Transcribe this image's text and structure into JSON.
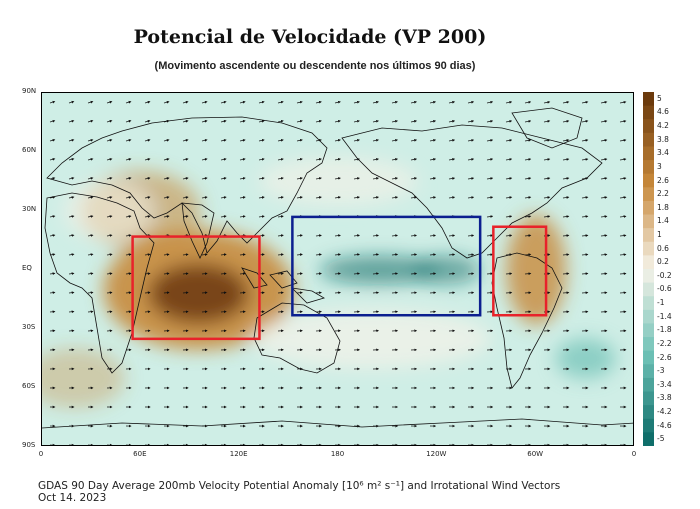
{
  "title": "Potencial de Velocidade (VP 200)",
  "subtitle": "(Movimento ascendente ou descendente nos últimos 90 dias)",
  "footer": {
    "line1": "GDAS 90 Day Average 200mb Velocity Potential Anomaly [10⁶ m² s⁻¹] and Irrotational Wind Vectors",
    "line2": "Oct 14. 2023"
  },
  "map": {
    "lat_labels": [
      "90N",
      "60N",
      "30N",
      "EQ",
      "30S",
      "60S",
      "90S"
    ],
    "lon_labels": [
      "0",
      "60E",
      "120E",
      "180",
      "120W",
      "60W",
      "0"
    ],
    "colors": {
      "positive_strong": "#6b3a0c",
      "positive": "#c8893b",
      "neutral": "#f5f2e8",
      "negative": "#6fc2b7",
      "negative_strong": "#0f6e6a",
      "box_red": "#e8222a",
      "box_blue": "#0b1f8f"
    },
    "boxes": [
      {
        "name": "indian-ocean-maritime-continent",
        "color": "red",
        "lon": [
          55,
          132
        ],
        "lat": [
          17,
          -35
        ]
      },
      {
        "name": "central-eastern-pacific",
        "color": "blue",
        "lon": [
          152,
          266
        ],
        "lat": [
          27,
          -23
        ]
      },
      {
        "name": "south-america",
        "color": "red",
        "lon": [
          274,
          306
        ],
        "lat": [
          22,
          -23
        ]
      }
    ]
  },
  "colorbar": {
    "labels": [
      "5",
      "4.6",
      "4.2",
      "3.8",
      "3.4",
      "3",
      "2.6",
      "2.2",
      "1.8",
      "1.4",
      "1",
      "0.6",
      "0.2",
      "-0.2",
      "-0.6",
      "-1",
      "-1.4",
      "-1.8",
      "-2.2",
      "-2.6",
      "-3",
      "-3.4",
      "-3.8",
      "-4.2",
      "-4.6",
      "-5"
    ]
  }
}
